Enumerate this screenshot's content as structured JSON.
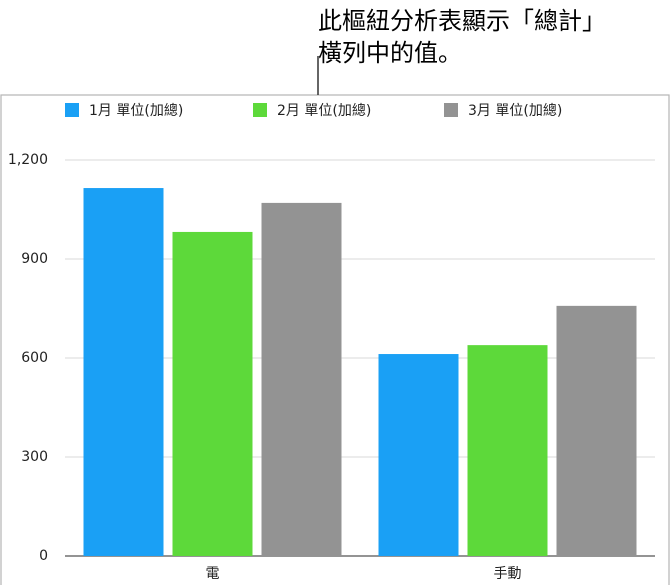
{
  "chart_data": {
    "type": "bar",
    "annotation": [
      "此樞紐分析表顯示「總計」",
      "橫列中的值。"
    ],
    "categories": [
      "電",
      "手動"
    ],
    "series": [
      {
        "name": "1月 單位(加總)",
        "color": "#1aa0f5",
        "values": [
          1115,
          612
        ]
      },
      {
        "name": "2月 單位(加總)",
        "color": "#5dd93a",
        "values": [
          982,
          639
        ]
      },
      {
        "name": "3月 單位(加總)",
        "color": "#939393",
        "values": [
          1070,
          758
        ]
      }
    ],
    "ylim": [
      0,
      1200
    ],
    "yticks": [
      0,
      300,
      600,
      900,
      {
        "value": 1200,
        "label": "1,200"
      }
    ],
    "grid": true,
    "legend": "top"
  }
}
